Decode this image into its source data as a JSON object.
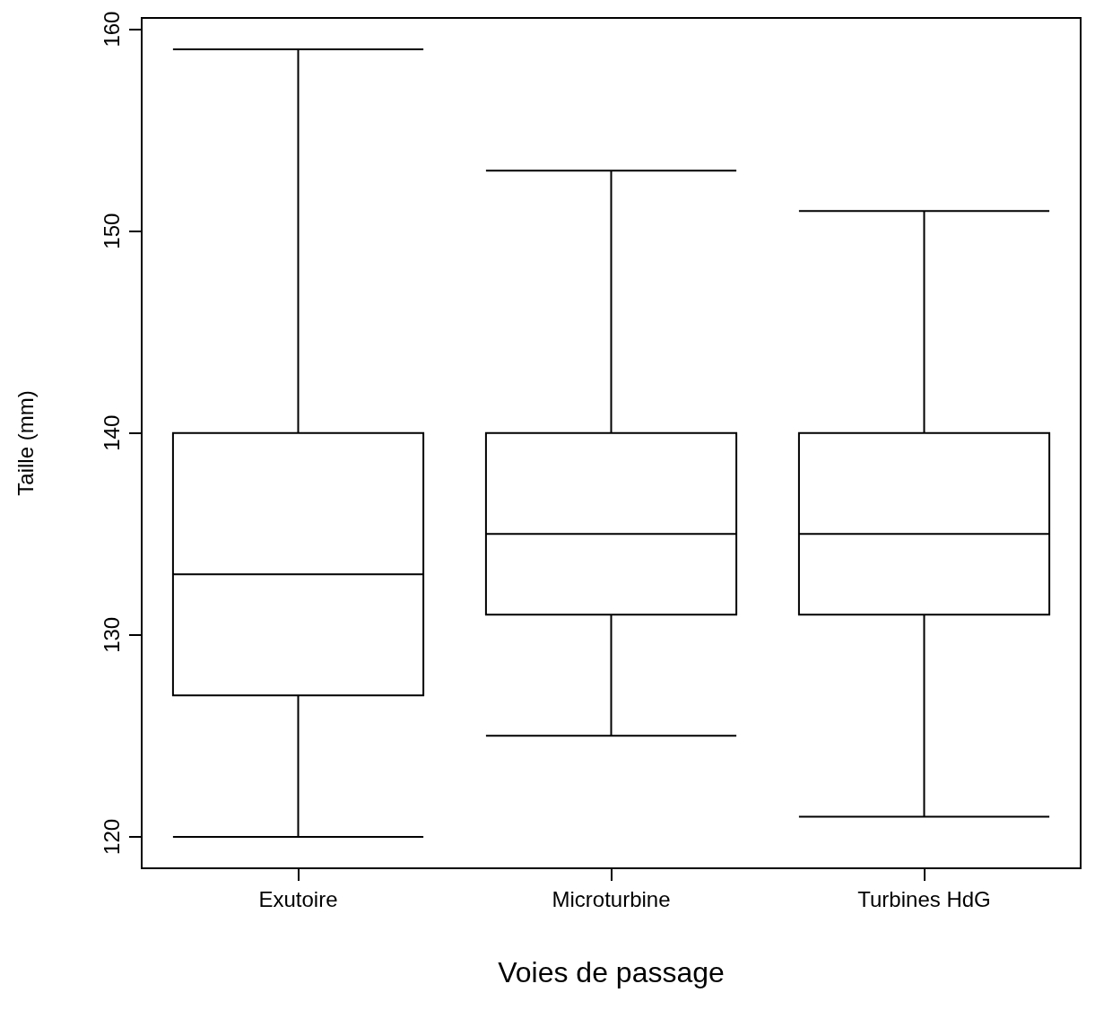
{
  "chart_data": {
    "type": "box",
    "xlabel": "Voies de passage",
    "ylabel": "Taille (mm)",
    "categories": [
      "Exutoire",
      "Microturbine",
      "Turbines HdG"
    ],
    "boxes": [
      {
        "low": 120,
        "q1": 127,
        "median": 133,
        "q3": 140,
        "high": 159
      },
      {
        "low": 125,
        "q1": 131,
        "median": 135,
        "q3": 140,
        "high": 153
      },
      {
        "low": 121,
        "q1": 131,
        "median": 135,
        "q3": 140,
        "high": 151
      }
    ],
    "ylim": [
      118.44,
      160.56
    ],
    "yticks": [
      120,
      130,
      140,
      150,
      160
    ],
    "grid": false
  }
}
